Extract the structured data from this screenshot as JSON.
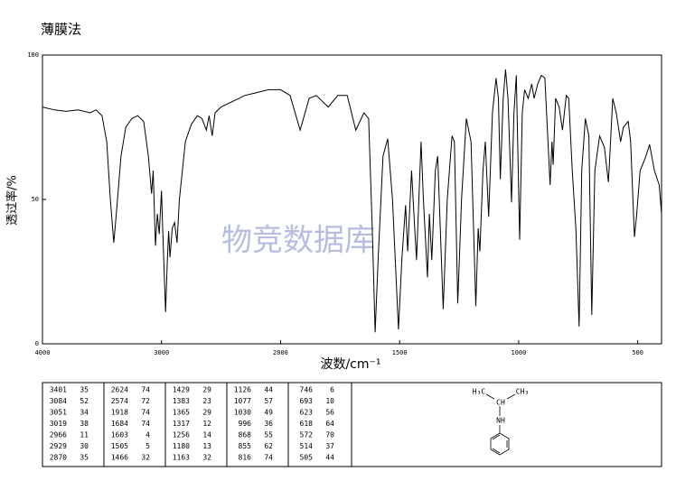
{
  "title": "薄膜法",
  "chart_data": {
    "type": "line",
    "x_label": "波数/cm⁻¹",
    "y_label": "透过率/%",
    "watermark": "物竞数据库",
    "color": "#000000",
    "xlim": [
      4000,
      400
    ],
    "xticks": [
      4000,
      3000,
      2000,
      1500,
      1000,
      500
    ],
    "x_scale_break": 2000,
    "x_scale_factor": 2,
    "ylim": [
      0,
      100
    ],
    "yticks": [
      0,
      50,
      100
    ],
    "x": [
      4000,
      3900,
      3800,
      3700,
      3600,
      3550,
      3500,
      3460,
      3430,
      3401,
      3380,
      3340,
      3300,
      3250,
      3200,
      3150,
      3110,
      3084,
      3070,
      3051,
      3035,
      3019,
      3000,
      2990,
      2966,
      2950,
      2940,
      2929,
      2910,
      2890,
      2870,
      2850,
      2800,
      2750,
      2700,
      2660,
      2624,
      2600,
      2574,
      2550,
      2500,
      2400,
      2300,
      2200,
      2100,
      2000,
      1960,
      1918,
      1880,
      1850,
      1800,
      1760,
      1720,
      1684,
      1650,
      1630,
      1615,
      1603,
      1590,
      1570,
      1550,
      1530,
      1505,
      1490,
      1475,
      1466,
      1450,
      1440,
      1429,
      1410,
      1400,
      1383,
      1375,
      1365,
      1350,
      1340,
      1317,
      1300,
      1280,
      1270,
      1256,
      1240,
      1220,
      1200,
      1180,
      1170,
      1163,
      1150,
      1140,
      1126,
      1110,
      1095,
      1085,
      1077,
      1065,
      1055,
      1045,
      1030,
      1020,
      1010,
      996,
      985,
      975,
      960,
      945,
      935,
      920,
      905,
      890,
      868,
      860,
      855,
      845,
      830,
      816,
      800,
      790,
      775,
      760,
      746,
      735,
      720,
      705,
      693,
      680,
      660,
      640,
      623,
      618,
      605,
      590,
      572,
      560,
      540,
      530,
      514,
      505,
      490,
      470,
      450,
      430,
      410,
      400
    ],
    "values": [
      82,
      81,
      80.5,
      81,
      80,
      81,
      79,
      70,
      50,
      35,
      45,
      65,
      75,
      78,
      79,
      77,
      65,
      52,
      60,
      34,
      45,
      38,
      53,
      40,
      11,
      30,
      39,
      30,
      40,
      42,
      35,
      50,
      70,
      76,
      79,
      78,
      74,
      79,
      72,
      80,
      82,
      84,
      86,
      87,
      88,
      88,
      86,
      74,
      85,
      86,
      82,
      86,
      86,
      74,
      80,
      78,
      40,
      4,
      30,
      65,
      71,
      50,
      5,
      30,
      48,
      32,
      60,
      45,
      29,
      70,
      50,
      23,
      45,
      29,
      60,
      65,
      12,
      50,
      72,
      70,
      14,
      50,
      78,
      70,
      13,
      40,
      32,
      60,
      70,
      44,
      80,
      92,
      85,
      57,
      85,
      95,
      85,
      49,
      80,
      93,
      36,
      80,
      88,
      85,
      90,
      85,
      90,
      93,
      92,
      55,
      70,
      62,
      85,
      82,
      74,
      86,
      85,
      60,
      40,
      6,
      60,
      78,
      72,
      10,
      60,
      72,
      68,
      56,
      64,
      85,
      80,
      70,
      75,
      77,
      70,
      37,
      44,
      60,
      64,
      69,
      60,
      55,
      45
    ]
  },
  "peaks": {
    "wavenumber": [
      3401,
      3084,
      3051,
      3019,
      2966,
      2929,
      2870,
      2624,
      2574,
      1918,
      1684,
      1603,
      1505,
      1466,
      1429,
      1383,
      1365,
      1317,
      1256,
      1180,
      1163,
      1126,
      1077,
      1030,
      996,
      868,
      855,
      816,
      746,
      693,
      623,
      618,
      572,
      514,
      505
    ],
    "transmittance": [
      35,
      52,
      34,
      38,
      11,
      30,
      35,
      74,
      72,
      74,
      74,
      4,
      5,
      32,
      29,
      23,
      29,
      12,
      14,
      13,
      32,
      44,
      57,
      49,
      36,
      55,
      62,
      74,
      6,
      10,
      56,
      64,
      70,
      37,
      44
    ]
  },
  "structure": {
    "labels": [
      "H₃C",
      "CH",
      "CH₃",
      "NH"
    ]
  }
}
